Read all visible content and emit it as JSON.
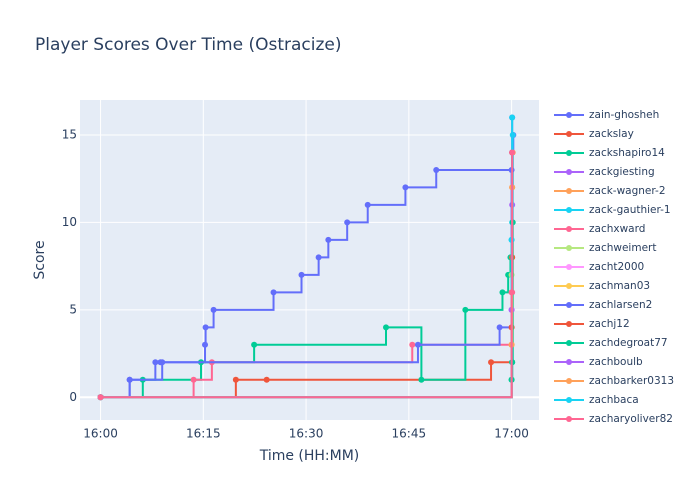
{
  "chart_data": {
    "type": "line",
    "line_shape": "step-after",
    "title": "Player Scores Over Time (Ostracize)",
    "xlabel": "Time (HH:MM)",
    "ylabel": "Score",
    "xlim": [
      "15:57",
      "17:04"
    ],
    "ylim": [
      -1.3,
      17
    ],
    "x_ticks": [
      {
        "t": "16:00",
        "label": "16:00"
      },
      {
        "t": "16:15",
        "label": "16:15"
      },
      {
        "t": "16:30",
        "label": "16:30"
      },
      {
        "t": "16:45",
        "label": "16:45"
      },
      {
        "t": "17:00",
        "label": "17:00"
      }
    ],
    "y_ticks": [
      0,
      5,
      10,
      15
    ],
    "grid": true,
    "legend_position": "right",
    "series": [
      {
        "name": "zain-ghosheh",
        "color": "#636efa",
        "points": [
          [
            "16:00:00",
            0
          ],
          [
            "16:04:15",
            1
          ],
          [
            "16:08:00",
            2
          ],
          [
            "16:08:45",
            2
          ],
          [
            "16:15:15",
            3
          ],
          [
            "16:15:20",
            4
          ],
          [
            "16:16:30",
            5
          ],
          [
            "16:25:15",
            6
          ],
          [
            "16:29:20",
            7
          ],
          [
            "16:31:50",
            8
          ],
          [
            "16:33:15",
            9
          ],
          [
            "16:36:00",
            10
          ],
          [
            "16:39:00",
            11
          ],
          [
            "16:44:30",
            12
          ],
          [
            "16:49:00",
            13
          ],
          [
            "17:00:05",
            14
          ],
          [
            "17:00:15",
            15
          ]
        ]
      },
      {
        "name": "zackslay",
        "color": "#ef553b",
        "points": [
          [
            "16:00:00",
            0
          ],
          [
            "16:19:45",
            1
          ],
          [
            "16:24:15",
            1
          ],
          [
            "16:57:00",
            2
          ],
          [
            "17:00:00",
            4
          ],
          [
            "17:00:05",
            14
          ]
        ]
      },
      {
        "name": "zackshapiro14",
        "color": "#00cc96",
        "points": [
          [
            "16:00:00",
            0
          ],
          [
            "16:06:10",
            1
          ],
          [
            "16:14:40",
            2
          ],
          [
            "16:22:25",
            3
          ],
          [
            "16:41:40",
            4
          ],
          [
            "16:46:50",
            1
          ],
          [
            "16:53:15",
            5
          ],
          [
            "16:58:40",
            6
          ],
          [
            "16:59:30",
            7
          ],
          [
            "16:59:50",
            8
          ],
          [
            "17:00:00",
            1
          ],
          [
            "17:00:05",
            2
          ]
        ]
      },
      {
        "name": "zackgiesting",
        "color": "#ab63fa",
        "points": [
          [
            "16:00:00",
            0
          ],
          [
            "17:00:00",
            5
          ],
          [
            "17:00:05",
            11
          ]
        ]
      },
      {
        "name": "zack-wagner-2",
        "color": "#ffa15a",
        "points": [
          [
            "16:00:00",
            0
          ],
          [
            "17:00:00",
            3
          ],
          [
            "17:00:05",
            12
          ],
          [
            "17:00:10",
            14
          ]
        ]
      },
      {
        "name": "zack-gauthier-1",
        "color": "#19d3f3",
        "points": [
          [
            "16:00:00",
            0
          ],
          [
            "17:00:00",
            9
          ],
          [
            "17:00:05",
            10
          ],
          [
            "17:00:10",
            15
          ]
        ]
      },
      {
        "name": "zachxward",
        "color": "#ff6692",
        "points": [
          [
            "16:00:00",
            0
          ],
          [
            "16:13:35",
            1
          ],
          [
            "16:16:15",
            2
          ],
          [
            "16:45:30",
            3
          ],
          [
            "17:00:05",
            6
          ]
        ]
      },
      {
        "name": "zachweimert",
        "color": "#b6e880",
        "points": [
          [
            "16:00:00",
            0
          ],
          [
            "17:00:00",
            7
          ]
        ]
      },
      {
        "name": "zacht2000",
        "color": "#ff97ff",
        "points": [
          [
            "16:00:00",
            0
          ],
          [
            "17:00:00",
            4
          ]
        ]
      },
      {
        "name": "zachman03",
        "color": "#fecb52",
        "points": [
          [
            "16:00:00",
            0
          ],
          [
            "17:00:00",
            3
          ],
          [
            "17:00:05",
            8
          ]
        ]
      },
      {
        "name": "zachlarsen2",
        "color": "#636efa",
        "points": [
          [
            "16:00:00",
            0
          ],
          [
            "16:04:15",
            1
          ],
          [
            "16:09:00",
            2
          ],
          [
            "16:46:20",
            3
          ],
          [
            "16:58:15",
            4
          ],
          [
            "17:00:00",
            13
          ],
          [
            "17:00:05",
            16
          ]
        ]
      },
      {
        "name": "zachj12",
        "color": "#ef553b",
        "points": [
          [
            "16:00:00",
            0
          ],
          [
            "17:00:00",
            4
          ],
          [
            "17:00:05",
            8
          ]
        ]
      },
      {
        "name": "zachdegroat77",
        "color": "#00cc96",
        "points": [
          [
            "16:00:00",
            0
          ],
          [
            "17:00:00",
            1
          ],
          [
            "17:00:05",
            2
          ],
          [
            "17:00:10",
            10
          ]
        ]
      },
      {
        "name": "zachboulb",
        "color": "#ab63fa",
        "points": [
          [
            "16:00:00",
            0
          ],
          [
            "17:00:00",
            5
          ]
        ]
      },
      {
        "name": "zachbarker0313",
        "color": "#ffa15a",
        "points": [
          [
            "16:00:00",
            0
          ],
          [
            "17:00:00",
            3
          ],
          [
            "17:00:05",
            12
          ]
        ]
      },
      {
        "name": "zachbaca",
        "color": "#19d3f3",
        "points": [
          [
            "16:00:00",
            0
          ],
          [
            "17:00:00",
            9
          ],
          [
            "17:00:05",
            16
          ]
        ]
      },
      {
        "name": "zacharyoliver82",
        "color": "#ff6692",
        "points": [
          [
            "16:00:00",
            0
          ],
          [
            "17:00:00",
            6
          ],
          [
            "17:00:05",
            14
          ]
        ]
      }
    ]
  }
}
